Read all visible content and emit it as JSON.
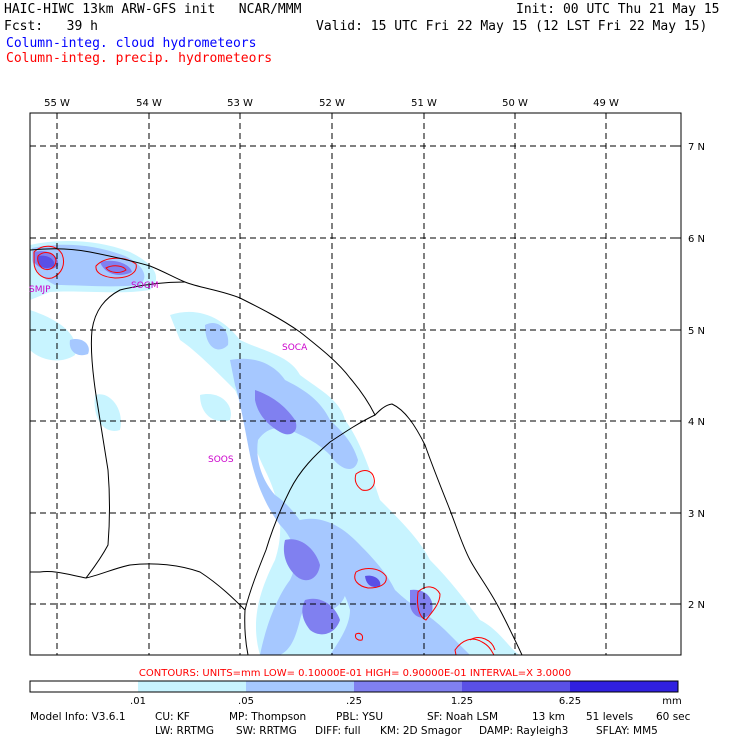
{
  "header": {
    "title": "HAIC-HIWC 13km ARW-GFS init   NCAR/MMM",
    "init": "Init: 00 UTC Thu 21 May 15",
    "fcst": "Fcst:   39 h",
    "valid": "Valid: 15 UTC Fri 22 May 15 (12 LST Fri 22 May 15)",
    "legend_cloud": "Column-integ. cloud hydrometeors",
    "legend_precip": "Column-integ. precip. hydrometeors"
  },
  "colors": {
    "cloud_label": "#0000ff",
    "precip_label": "#ff0000",
    "station": "#cc00cc",
    "shade_1": "#c8f4ff",
    "shade_2": "#a6c8ff",
    "shade_3": "#8080f0",
    "shade_4": "#5a50e6",
    "shade_5": "#3020e0",
    "contour": "#ff0000"
  },
  "longitudes": [
    "55 W",
    "54 W",
    "53 W",
    "52 W",
    "51 W",
    "50 W",
    "49 W"
  ],
  "latitudes": [
    "7 N",
    "6 N",
    "5 N",
    "4 N",
    "3 N",
    "2 N"
  ],
  "stations": [
    "SMJP",
    "SOGM",
    "SOCA",
    "SOOS"
  ],
  "contour_info": "CONTOURS:  UNITS=mm  LOW= 0.10000E-01  HIGH= 0.90000E-01  INTERVAL=X  3.0000",
  "colorbar": {
    "ticks": [
      ".01",
      ".05",
      ".25",
      "1.25",
      "6.25"
    ],
    "units": "mm"
  },
  "footer": {
    "line1": [
      "Model Info: V3.6.1",
      "CU: KF",
      "MP: Thompson",
      "PBL: YSU",
      "SF: Noah LSM",
      "13 km",
      "51 levels",
      "60 sec"
    ],
    "line2": [
      "LW: RRTMG",
      "SW: RRTMG",
      "DIFF: full",
      "KM: 2D Smagor",
      "DAMP: Rayleigh3",
      "SFLAY: MM5"
    ]
  }
}
